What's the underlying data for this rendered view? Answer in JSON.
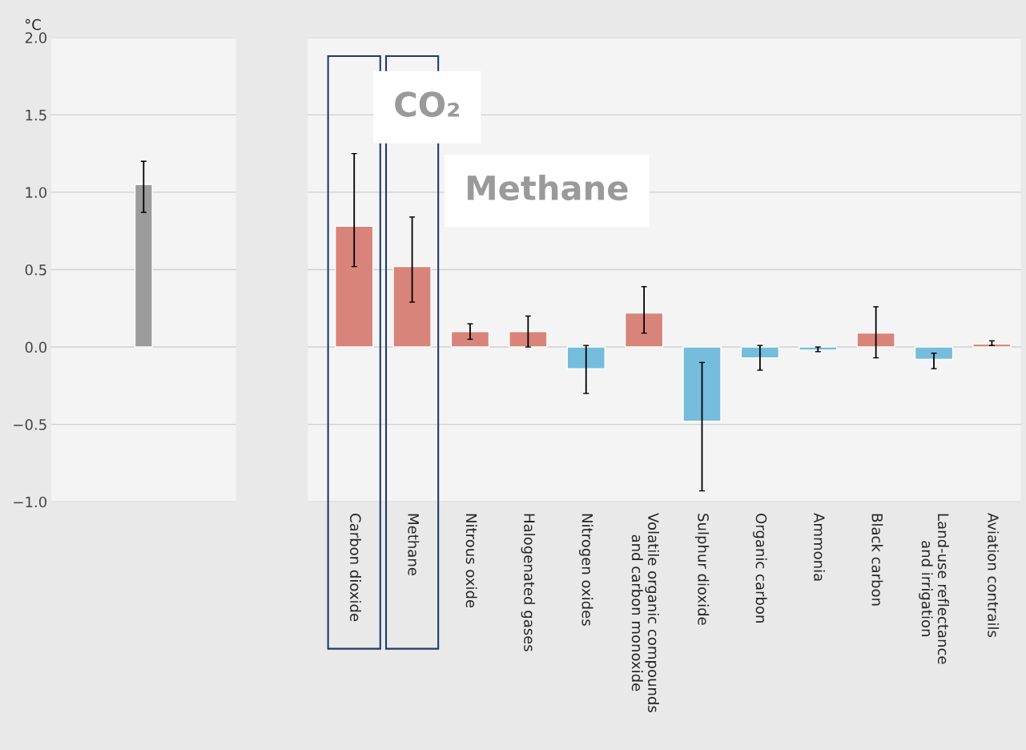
{
  "chart_data": [
    {
      "type": "bar",
      "ylabel": "°C",
      "categories": [
        null
      ],
      "values": [
        1.05
      ],
      "errors": [
        [
          0.87,
          1.2
        ]
      ],
      "colors": [
        "#9b9b9b"
      ],
      "ylim": [
        -1.0,
        2.0
      ],
      "yticks": [
        {
          "value": -1.0,
          "label": "−1.0"
        },
        {
          "value": -0.5,
          "label": "−0.5"
        },
        {
          "value": 0.0,
          "label": "0.0"
        },
        {
          "value": 0.5,
          "label": "0.5"
        },
        {
          "value": 1.0,
          "label": "1.0"
        },
        {
          "value": 1.5,
          "label": "1.5"
        },
        {
          "value": 2.0,
          "label": "2.0"
        }
      ],
      "grid": "y",
      "tick_labels": "y"
    },
    {
      "type": "bar",
      "categories": [
        "Carbon dioxide",
        "Methane",
        "Nitrous oxide",
        "Halogenated gases",
        "Nitrogen oxides",
        "Volatile organic compounds\nand carbon monoxide",
        "Sulphur dioxide",
        "Organic carbon",
        "Ammonia",
        "Black carbon",
        "Land-use reflectance\nand irrigation",
        "Aviation contrails"
      ],
      "values": [
        0.78,
        0.52,
        0.1,
        0.1,
        -0.14,
        0.22,
        -0.48,
        -0.07,
        -0.02,
        0.09,
        -0.08,
        0.02
      ],
      "errors": [
        [
          0.52,
          1.25
        ],
        [
          0.29,
          0.84
        ],
        [
          0.05,
          0.15
        ],
        [
          0.0,
          0.2
        ],
        [
          -0.3,
          0.01
        ],
        [
          0.09,
          0.39
        ],
        [
          -0.93,
          -0.1
        ],
        [
          -0.15,
          0.01
        ],
        [
          -0.03,
          0.0
        ],
        [
          -0.07,
          0.26
        ],
        [
          -0.14,
          -0.04
        ],
        [
          0.01,
          0.04
        ]
      ],
      "colors": [
        "#d9847b",
        "#d9847b",
        "#d9847b",
        "#d9847b",
        "#76bcdc",
        "#d9847b",
        "#76bcdc",
        "#76bcdc",
        "#76bcdc",
        "#d9847b",
        "#76bcdc",
        "#d9847b"
      ],
      "ylim": [
        -1.0,
        2.0
      ],
      "yticks": [
        -1.0,
        -0.5,
        0.0,
        0.5,
        1.0,
        1.5,
        2.0
      ],
      "grid": "y",
      "tick_labels": "x",
      "annotations": [
        "CO₂",
        "Methane"
      ]
    }
  ]
}
